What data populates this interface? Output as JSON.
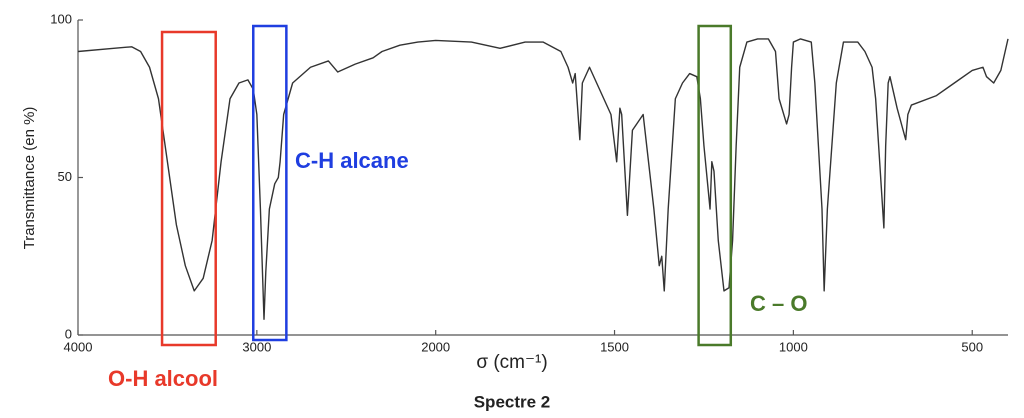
{
  "chart_data": {
    "type": "line",
    "title": "Spectre 2",
    "x_label": "σ (cm⁻¹)",
    "y_label": "Transmittance (en %)",
    "xlim": [
      4000,
      400
    ],
    "x_scale": {
      "break": 2000,
      "ratio": 2
    },
    "xticks": [
      4000,
      3000,
      2000,
      1500,
      1000,
      500
    ],
    "ylim": [
      0,
      100
    ],
    "yticks": [
      0,
      50,
      100
    ],
    "grid": false,
    "series": [
      {
        "name": "Spectre 2",
        "color": "#333333",
        "x": [
          4000,
          3800,
          3700,
          3650,
          3600,
          3550,
          3500,
          3450,
          3400,
          3350,
          3300,
          3250,
          3200,
          3150,
          3100,
          3050,
          3020,
          3000,
          2980,
          2960,
          2950,
          2930,
          2900,
          2880,
          2870,
          2850,
          2800,
          2700,
          2600,
          2548,
          2450,
          2350,
          2300,
          2200,
          2100,
          2000,
          1900,
          1820,
          1750,
          1700,
          1650,
          1630,
          1617,
          1610,
          1597,
          1590,
          1570,
          1550,
          1510,
          1494,
          1485,
          1480,
          1464,
          1450,
          1420,
          1390,
          1375,
          1368,
          1361,
          1350,
          1330,
          1310,
          1290,
          1270,
          1260,
          1250,
          1233,
          1228,
          1222,
          1210,
          1194,
          1180,
          1170,
          1160,
          1150,
          1130,
          1100,
          1070,
          1050,
          1040,
          1019,
          1012,
          1005,
          1000,
          980,
          950,
          940,
          920,
          914,
          905,
          880,
          860,
          820,
          800,
          780,
          770,
          747,
          742,
          735,
          730,
          710,
          686,
          680,
          670,
          600,
          550,
          500,
          470,
          460,
          440,
          420,
          400
        ],
        "values": [
          90,
          91,
          91.5,
          90,
          85,
          75,
          55,
          35,
          22,
          14,
          18,
          30,
          55,
          75,
          80,
          81,
          78,
          70,
          40,
          5,
          20,
          40,
          48,
          50,
          55,
          70,
          80,
          85,
          87,
          83.5,
          86,
          88,
          90,
          92,
          93,
          93.5,
          93,
          91,
          93,
          93,
          90,
          85,
          80,
          83,
          62,
          80,
          85,
          80,
          70,
          55,
          72,
          70,
          38,
          65,
          70,
          40,
          22,
          25,
          14,
          40,
          75,
          80,
          83,
          82,
          75,
          60,
          40,
          55,
          52,
          30,
          14,
          15,
          30,
          60,
          85,
          93,
          94,
          94,
          90,
          75,
          67,
          70,
          85,
          93,
          94,
          93,
          80,
          40,
          14,
          40,
          80,
          93,
          93,
          90,
          85,
          75,
          34,
          60,
          80,
          82,
          72,
          62,
          70,
          73,
          76,
          80,
          84,
          85,
          82,
          80,
          84,
          94
        ]
      }
    ],
    "annotations": [
      {
        "text": "O-H alcool",
        "color": "#e8392a",
        "x_range": [
          3530,
          3230
        ]
      },
      {
        "text": "C-H alcane",
        "color": "#1f3ee0",
        "x_range": [
          3020,
          2835
        ]
      },
      {
        "text": "C – O",
        "color": "#4a7a2a",
        "x_range": [
          1265,
          1175
        ]
      }
    ]
  }
}
